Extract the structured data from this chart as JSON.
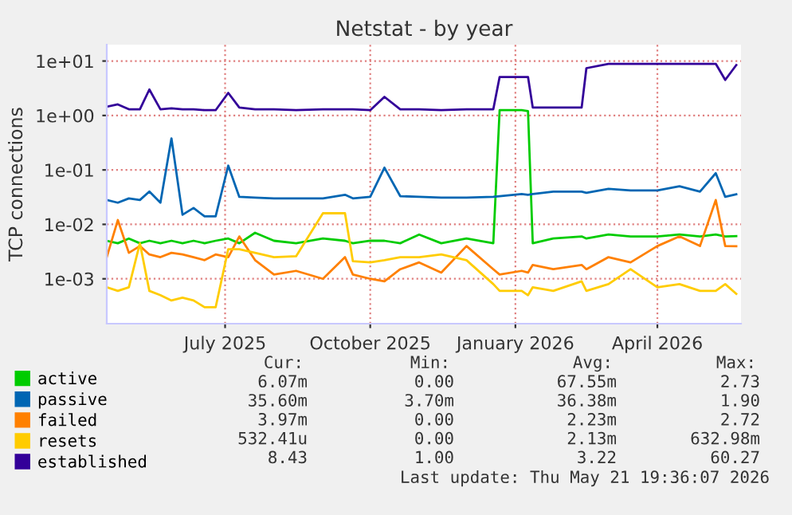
{
  "chart_data": {
    "type": "line",
    "title": "Netstat - by year",
    "ylabel": "TCP connections",
    "log": true,
    "grid": true,
    "legend": "bottom",
    "marker": "none",
    "line_style": "solid",
    "x": [
      "2025-04-17",
      "2025-04-24",
      "2025-05-01",
      "2025-05-08",
      "2025-05-14",
      "2025-05-21",
      "2025-05-28",
      "2025-06-04",
      "2025-06-11",
      "2025-06-18",
      "2025-06-25",
      "2025-07-03",
      "2025-07-10",
      "2025-07-20",
      "2025-08-01",
      "2025-08-15",
      "2025-09-01",
      "2025-09-15",
      "2025-09-20",
      "2025-10-01",
      "2025-10-10",
      "2025-10-20",
      "2025-11-01",
      "2025-11-15",
      "2025-12-01",
      "2025-12-18",
      "2025-12-22",
      "2026-01-05",
      "2026-01-09",
      "2026-01-12",
      "2026-01-25",
      "2026-02-12",
      "2026-02-15",
      "2026-03-01",
      "2026-03-15",
      "2026-04-01",
      "2026-04-15",
      "2026-04-28",
      "2026-05-08",
      "2026-05-14",
      "2026-05-21"
    ],
    "xlim": [
      "2025-04-17",
      "2026-05-24"
    ],
    "xticks": [
      {
        "value": "2025-07-01",
        "label": "July 2025"
      },
      {
        "value": "2025-10-01",
        "label": "October 2025"
      },
      {
        "value": "2026-01-01",
        "label": "January 2026"
      },
      {
        "value": "2026-04-01",
        "label": "April 2026"
      }
    ],
    "ylim": [
      0.00015,
      20
    ],
    "yticks": [
      {
        "value": 0.001,
        "label": "1e-03"
      },
      {
        "value": 0.01,
        "label": "1e-02"
      },
      {
        "value": 0.1,
        "label": "1e-01"
      },
      {
        "value": 1,
        "label": "1e+00"
      },
      {
        "value": 10,
        "label": "1e+01"
      }
    ],
    "series": [
      {
        "name": "active",
        "color": "#00cc00",
        "values": [
          0.005,
          0.0045,
          0.0055,
          0.0045,
          0.005,
          0.0045,
          0.005,
          0.0045,
          0.005,
          0.0045,
          0.005,
          0.0055,
          0.0045,
          0.007,
          0.005,
          0.0045,
          0.0055,
          0.005,
          0.0045,
          0.005,
          0.005,
          0.0045,
          0.0065,
          0.0045,
          0.0055,
          0.0045,
          1.25,
          1.25,
          1.2,
          0.0045,
          0.0055,
          0.006,
          0.0055,
          0.0065,
          0.006,
          0.006,
          0.0065,
          0.006,
          0.0065,
          0.006,
          0.00607
        ]
      },
      {
        "name": "passive",
        "color": "#0066b3",
        "values": [
          0.028,
          0.025,
          0.03,
          0.028,
          0.04,
          0.025,
          0.38,
          0.015,
          0.02,
          0.014,
          0.014,
          0.12,
          0.032,
          0.031,
          0.03,
          0.03,
          0.03,
          0.035,
          0.03,
          0.032,
          0.11,
          0.033,
          0.032,
          0.031,
          0.031,
          0.032,
          0.033,
          0.036,
          0.035,
          0.036,
          0.04,
          0.04,
          0.038,
          0.045,
          0.042,
          0.042,
          0.05,
          0.04,
          0.087,
          0.032,
          0.0356
        ]
      },
      {
        "name": "failed",
        "color": "#ff8000",
        "values": [
          0.0025,
          0.012,
          0.003,
          0.004,
          0.0028,
          0.0025,
          0.003,
          0.0028,
          0.0025,
          0.0022,
          0.0028,
          0.0025,
          0.006,
          0.0022,
          0.0012,
          0.0014,
          0.001,
          0.0025,
          0.0012,
          0.001,
          0.0009,
          0.0015,
          0.002,
          0.0013,
          0.004,
          0.0015,
          0.0012,
          0.0014,
          0.0013,
          0.0018,
          0.0015,
          0.0018,
          0.0015,
          0.0025,
          0.002,
          0.004,
          0.006,
          0.004,
          0.028,
          0.004,
          0.00397
        ]
      },
      {
        "name": "resets",
        "color": "#ffcc00",
        "values": [
          0.0007,
          0.0006,
          0.0007,
          0.0045,
          0.0006,
          0.0005,
          0.0004,
          0.00045,
          0.0004,
          0.0003,
          0.0003,
          0.0035,
          0.0035,
          0.003,
          0.0025,
          0.0026,
          0.016,
          0.016,
          0.0021,
          0.002,
          0.0022,
          0.0025,
          0.0025,
          0.0028,
          0.0022,
          0.0008,
          0.0006,
          0.0006,
          0.0005,
          0.0007,
          0.0006,
          0.0009,
          0.0006,
          0.0008,
          0.0015,
          0.0007,
          0.0008,
          0.0006,
          0.0006,
          0.0008,
          0.00053
        ]
      },
      {
        "name": "established",
        "color": "#330099",
        "values": [
          1.45,
          1.6,
          1.3,
          1.3,
          3.0,
          1.3,
          1.35,
          1.3,
          1.3,
          1.25,
          1.25,
          2.6,
          1.4,
          1.3,
          1.3,
          1.25,
          1.3,
          1.3,
          1.3,
          1.25,
          2.2,
          1.3,
          1.3,
          1.25,
          1.3,
          1.3,
          5.1,
          5.1,
          5.1,
          1.4,
          1.4,
          1.4,
          7.4,
          8.9,
          8.9,
          8.9,
          8.9,
          8.9,
          8.9,
          4.5,
          8.43
        ]
      }
    ],
    "annotations": [
      "Cur:",
      "Min:",
      "Avg:",
      "Max:",
      "6.07m",
      "0.00",
      "67.55m",
      "2.73",
      "35.60m",
      "3.70m",
      "36.38m",
      "1.90",
      "3.97m",
      "0.00",
      "2.23m",
      "2.72",
      "532.41u",
      "0.00",
      "2.13m",
      "632.98m",
      "8.43",
      "1.00",
      "3.22",
      "60.27",
      "Last update: Thu May 21 19:36:07 2026"
    ]
  }
}
